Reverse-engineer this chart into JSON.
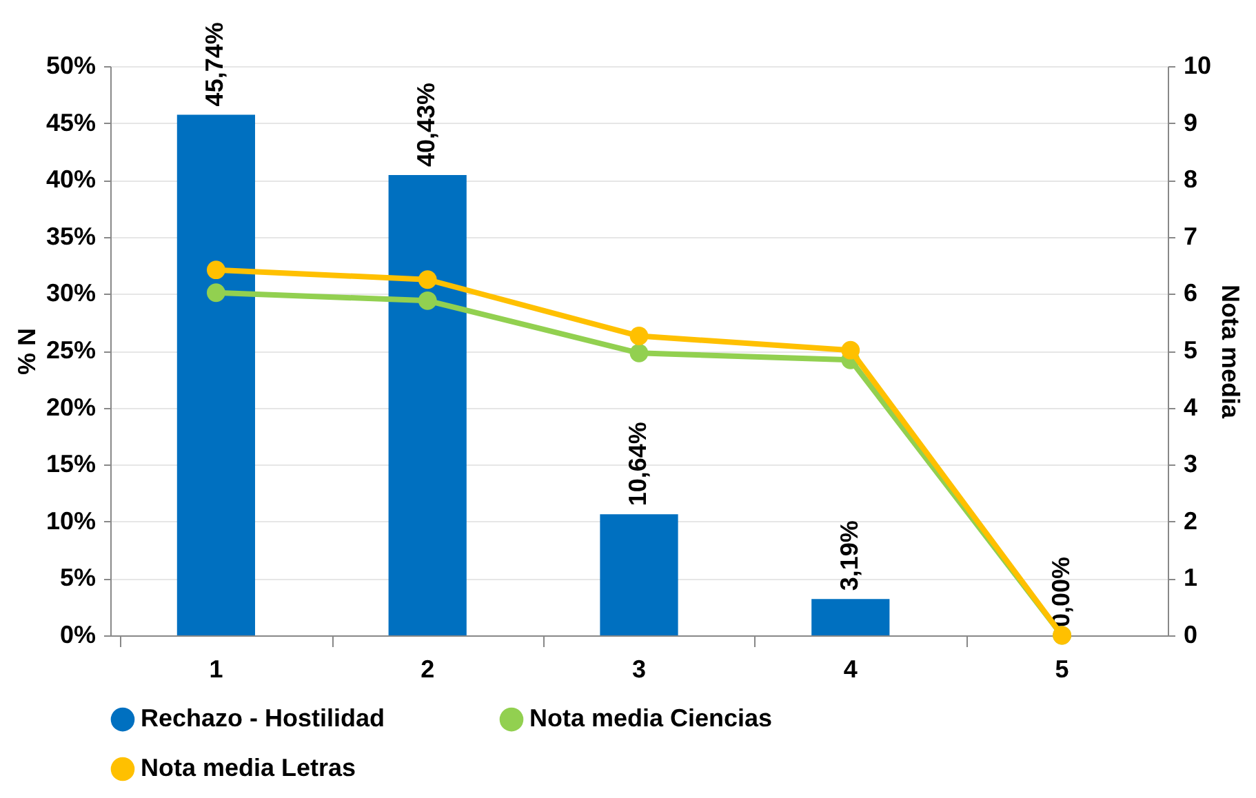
{
  "chart_data": {
    "type": "bar",
    "categories": [
      "1",
      "2",
      "3",
      "4",
      "5"
    ],
    "series": [
      {
        "name": "Rechazo - Hostilidad",
        "color": "#0070c0",
        "values": [
          45.74,
          40.43,
          10.64,
          3.19,
          0
        ],
        "value_labels": [
          "45,74%",
          "40,43%",
          "10,64%",
          "3,19%",
          "0,00%"
        ]
      },
      {
        "name": "Nota media Ciencias",
        "type": "line",
        "axis": "y2",
        "color": "#92d050",
        "values": [
          6.02,
          5.88,
          4.96,
          4.84,
          0
        ]
      },
      {
        "name": "Nota media Letras",
        "type": "line",
        "axis": "y2",
        "color": "#ffc000",
        "values": [
          6.42,
          6.25,
          5.26,
          5.01,
          0
        ]
      }
    ],
    "ylabel": "% N",
    "y2label": "Nota media",
    "ylim": [
      0,
      50
    ],
    "yticks": [
      {
        "value": 0,
        "label": "0%"
      },
      {
        "value": 5,
        "label": "5%"
      },
      {
        "value": 10,
        "label": "10%"
      },
      {
        "value": 15,
        "label": "15%"
      },
      {
        "value": 20,
        "label": "20%"
      },
      {
        "value": 25,
        "label": "25%"
      },
      {
        "value": 30,
        "label": "30%"
      },
      {
        "value": 35,
        "label": "35%"
      },
      {
        "value": 40,
        "label": "40%"
      },
      {
        "value": 45,
        "label": "45%"
      },
      {
        "value": 50,
        "label": "50%"
      }
    ],
    "y2lim": [
      0,
      10
    ],
    "y2ticks": [
      0,
      1,
      2,
      3,
      4,
      5,
      6,
      7,
      8,
      9,
      10
    ],
    "grid": "y",
    "legend": "bottom",
    "marker": "circle"
  }
}
